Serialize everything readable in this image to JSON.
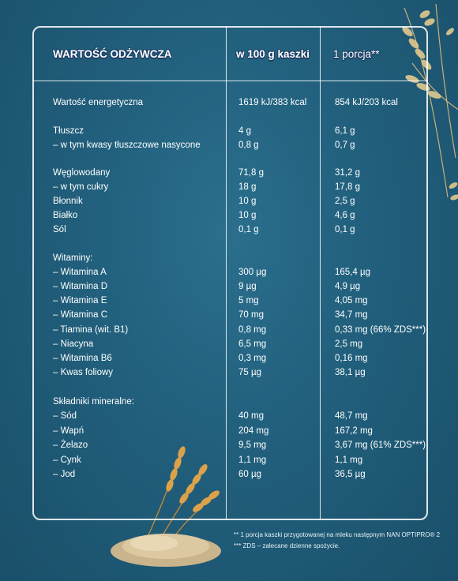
{
  "header": {
    "col1": "WARTOŚĆ ODŻYWCZA",
    "col2": "w 100 g kaszki",
    "col3": "1 porcja**"
  },
  "rows": [
    {
      "label": "Wartość energetyczna",
      "v100": "1619 kJ/383 kcal",
      "portion": "854 kJ/203 kcal"
    },
    {
      "label": "Tłuszcz",
      "v100": "4 g",
      "portion": "6,1 g"
    },
    {
      "label": "– w tym kwasy tłuszczowe nasycone",
      "v100": "0,8 g",
      "portion": "0,7 g"
    },
    {
      "label": "Węglowodany",
      "v100": "71,8 g",
      "portion": "31,2 g"
    },
    {
      "label": "– w tym cukry",
      "v100": "18 g",
      "portion": "17,8 g"
    },
    {
      "label": "Błonnik",
      "v100": "10 g",
      "portion": "2,5 g"
    },
    {
      "label": "Białko",
      "v100": "10 g",
      "portion": "4,6 g"
    },
    {
      "label": "Sól",
      "v100": "0,1 g",
      "portion": "0,1 g"
    },
    {
      "label": "Witaminy:",
      "v100": "",
      "portion": ""
    },
    {
      "label": "– Witamina A",
      "v100": "300 µg",
      "portion": "165,4 µg"
    },
    {
      "label": "– Witamina D",
      "v100": "9 µg",
      "portion": "4,9 µg"
    },
    {
      "label": "– Witamina E",
      "v100": "5 mg",
      "portion": "4,05 mg"
    },
    {
      "label": "– Witamina C",
      "v100": "70 mg",
      "portion": "34,7 mg"
    },
    {
      "label": "– Tiamina (wit. B1)",
      "v100": "0,8 mg",
      "portion": "0,33 mg (66% ZDS***)"
    },
    {
      "label": "– Niacyna",
      "v100": "6,5 mg",
      "portion": "2,5 mg"
    },
    {
      "label": "– Witamina B6",
      "v100": "0,3 mg",
      "portion": "0,16 mg"
    },
    {
      "label": "– Kwas foliowy",
      "v100": "75 µg",
      "portion": "38,1 µg"
    },
    {
      "label": "Składniki mineralne:",
      "v100": "",
      "portion": ""
    },
    {
      "label": "– Sód",
      "v100": "40 mg",
      "portion": "48,7 mg"
    },
    {
      "label": "– Wapń",
      "v100": "204 mg",
      "portion": "167,2 mg"
    },
    {
      "label": "– Żelazo",
      "v100": "9,5 mg",
      "portion": "3,67 mg (61% ZDS***)"
    },
    {
      "label": "– Cynk",
      "v100": "1,1 mg",
      "portion": "1,1 mg"
    },
    {
      "label": "– Jod",
      "v100": "60 µg",
      "portion": "36,5 µg"
    }
  ],
  "footnotes": [
    "** 1 porcja kaszki przygotowanej na mleku następnym NAN OPTIPRO® 2",
    "*** ZDS – zalecane dzienne spożycie."
  ],
  "colors": {
    "background": "#215f7c",
    "lines": "#ffffff",
    "header_outline": "#1d3f66",
    "wheat": "#d9a24e"
  },
  "decorations": [
    "wheat-ears-top-right",
    "wheat-ears-bottom-left",
    "grain-pile"
  ]
}
